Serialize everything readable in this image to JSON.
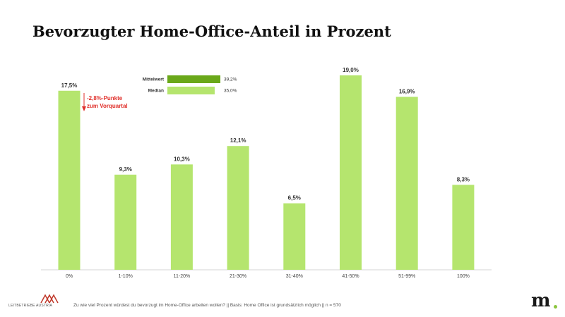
{
  "title": "Bevorzugter Home-Office-Anteil in Prozent",
  "chart_data": {
    "type": "bar",
    "categories": [
      "0%",
      "1-10%",
      "11-20%",
      "21-30%",
      "31-40%",
      "41-50%",
      "51-99%",
      "100%"
    ],
    "values": [
      17.5,
      9.3,
      10.3,
      12.1,
      6.5,
      19.0,
      16.9,
      8.3
    ],
    "value_labels": [
      "17,5%",
      "9,3%",
      "10,3%",
      "12,1%",
      "6,5%",
      "19,0%",
      "16,9%",
      "8,3%"
    ],
    "ylim": [
      0,
      19.0
    ],
    "grid": false,
    "bar_color": "#b5e56e",
    "legend": {
      "placement": "top-left",
      "items": [
        {
          "label": "Mittelwert",
          "value": 39.2,
          "value_label": "39,2%",
          "color": "#6aa81a"
        },
        {
          "label": "Median",
          "value": 35.0,
          "value_label": "35,0%",
          "color": "#b5e56e"
        }
      ],
      "max": 39.2
    },
    "annotation": {
      "category": "0%",
      "lines": [
        "-2,8%-Punkte",
        "zum Vorquartal"
      ],
      "color": "#e0302b"
    }
  },
  "footer": {
    "logo_text": "LEITBETRIEBE AUSTRIA",
    "note": "Zu wie viel Prozent würdest du bevorzugt im Home-Office arbeiten wollen? || Basis: Home Office ist grundsätzlich möglich || n = 570",
    "brand": "m",
    "brand_dot_color": "#8cc63f",
    "logo_color": "#c0392b"
  }
}
